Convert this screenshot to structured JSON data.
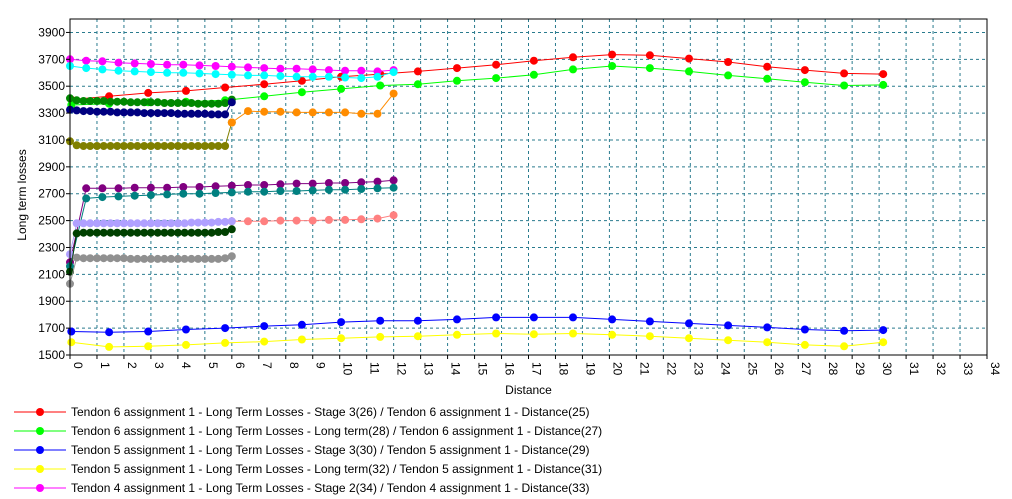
{
  "chart_data": {
    "type": "line",
    "title": "",
    "xlabel": "Distance",
    "ylabel": "Long term losses",
    "xlim": [
      0,
      34
    ],
    "ylim": [
      1500,
      4000
    ],
    "x_ticks": [
      0,
      1,
      2,
      3,
      4,
      5,
      6,
      7,
      8,
      9,
      10,
      11,
      12,
      13,
      14,
      15,
      16,
      17,
      18,
      19,
      20,
      21,
      22,
      23,
      24,
      25,
      26,
      27,
      28,
      29,
      30,
      31,
      32,
      33,
      34
    ],
    "y_ticks": [
      1500,
      1700,
      1900,
      2100,
      2300,
      2500,
      2700,
      2900,
      3100,
      3300,
      3500,
      3700,
      3900
    ],
    "grid": true,
    "legend_position": "bottom",
    "series": [
      {
        "name": "Tendon 6 assignment 1 - Long Term Losses - Stage 3(26) / Tendon 6 assignment 1 - Distance(25)",
        "color": "#ff0000",
        "in_legend": true,
        "x": [
          0.05,
          1.45,
          2.9,
          4.3,
          5.75,
          7.2,
          8.6,
          10.05,
          11.5,
          12.9,
          14.35,
          15.8,
          17.2,
          18.65,
          20.1,
          21.5,
          22.95,
          24.4,
          25.85,
          27.25,
          28.7,
          30.15
        ],
        "y": [
          3400,
          3425,
          3450,
          3465,
          3490,
          3515,
          3540,
          3570,
          3590,
          3610,
          3635,
          3660,
          3690,
          3715,
          3735,
          3730,
          3705,
          3680,
          3645,
          3620,
          3595,
          3590
        ]
      },
      {
        "name": "Tendon 6 assignment 1 - Long Term Losses - Long term(28) / Tendon 6 assignment 1 - Distance(27)",
        "color": "#00ff00",
        "in_legend": true,
        "x": [
          0.05,
          1.45,
          2.9,
          4.3,
          5.75,
          7.2,
          8.6,
          10.05,
          11.5,
          12.9,
          14.35,
          15.8,
          17.2,
          18.65,
          20.1,
          21.5,
          22.95,
          24.4,
          25.85,
          27.25,
          28.7,
          30.15
        ],
        "y": [
          3360,
          3370,
          3380,
          3385,
          3395,
          3425,
          3455,
          3480,
          3505,
          3515,
          3540,
          3560,
          3585,
          3625,
          3650,
          3635,
          3610,
          3580,
          3555,
          3530,
          3505,
          3510
        ]
      },
      {
        "name": "Tendon 5 assignment 1 - Long Term Losses - Stage 3(30) / Tendon 5 assignment 1 - Distance(29)",
        "color": "#0000ff",
        "in_legend": true,
        "x": [
          0.05,
          1.45,
          2.9,
          4.3,
          5.75,
          7.2,
          8.6,
          10.05,
          11.5,
          12.9,
          14.35,
          15.8,
          17.2,
          18.65,
          20.1,
          21.5,
          22.95,
          24.4,
          25.85,
          27.25,
          28.7,
          30.15
        ],
        "y": [
          1675,
          1670,
          1675,
          1690,
          1700,
          1715,
          1725,
          1745,
          1755,
          1755,
          1765,
          1780,
          1780,
          1780,
          1765,
          1750,
          1735,
          1720,
          1705,
          1690,
          1680,
          1685
        ]
      },
      {
        "name": "Tendon 5 assignment 1 - Long Term Losses - Long term(32) / Tendon 5 assignment 1 - Distance(31)",
        "color": "#ffff00",
        "in_legend": true,
        "x": [
          0.05,
          1.45,
          2.9,
          4.3,
          5.75,
          7.2,
          8.6,
          10.05,
          11.5,
          12.9,
          14.35,
          15.8,
          17.2,
          18.65,
          20.1,
          21.5,
          22.95,
          24.4,
          25.85,
          27.25,
          28.7,
          30.15
        ],
        "y": [
          1595,
          1560,
          1565,
          1575,
          1590,
          1600,
          1615,
          1625,
          1635,
          1640,
          1650,
          1660,
          1655,
          1660,
          1650,
          1640,
          1625,
          1610,
          1595,
          1575,
          1565,
          1595
        ]
      },
      {
        "name": "Tendon 4 assignment 1 - Long Term Losses - Stage 2(34) / Tendon 4 assignment 1 - Distance(33)",
        "color": "#ff00ff",
        "in_legend": true,
        "x": [
          0.0,
          0.6,
          1.2,
          1.8,
          2.4,
          3.0,
          3.6,
          4.2,
          4.8,
          5.4,
          6.0,
          6.6,
          7.2,
          7.8,
          8.4,
          9.0,
          9.6,
          10.2,
          10.8,
          11.4,
          12.0
        ],
        "y": [
          3700,
          3690,
          3685,
          3675,
          3670,
          3665,
          3660,
          3660,
          3655,
          3650,
          3645,
          3640,
          3635,
          3630,
          3630,
          3625,
          3620,
          3615,
          3615,
          3610,
          3620
        ]
      },
      {
        "name": "Cyan series",
        "color": "#00ffff",
        "in_legend": false,
        "x": [
          0.0,
          0.6,
          1.2,
          1.8,
          2.4,
          3.0,
          3.6,
          4.2,
          4.8,
          5.4,
          6.0,
          6.6,
          7.2,
          7.8,
          8.4,
          9.0,
          9.6,
          10.2,
          10.8,
          11.4,
          12.0
        ],
        "y": [
          3650,
          3635,
          3625,
          3615,
          3610,
          3605,
          3600,
          3600,
          3595,
          3590,
          3585,
          3580,
          3580,
          3575,
          3570,
          3570,
          3570,
          3565,
          3560,
          3570,
          3605
        ]
      },
      {
        "name": "Dark green series",
        "color": "#008800",
        "in_legend": false,
        "x": [
          0.0,
          0.25,
          0.5,
          0.75,
          1.0,
          1.25,
          1.5,
          1.75,
          2.0,
          2.25,
          2.5,
          2.75,
          3.0,
          3.25,
          3.5,
          3.75,
          4.0,
          4.25,
          4.5,
          4.75,
          5.0,
          5.25,
          5.5,
          5.75,
          6.0
        ],
        "y": [
          3410,
          3395,
          3390,
          3390,
          3390,
          3390,
          3385,
          3385,
          3385,
          3380,
          3380,
          3380,
          3380,
          3380,
          3375,
          3375,
          3375,
          3375,
          3375,
          3370,
          3370,
          3370,
          3370,
          3375,
          3400
        ]
      },
      {
        "name": "Navy series",
        "color": "#000080",
        "in_legend": false,
        "x": [
          0.0,
          0.25,
          0.5,
          0.75,
          1.0,
          1.25,
          1.5,
          1.75,
          2.0,
          2.25,
          2.5,
          2.75,
          3.0,
          3.25,
          3.5,
          3.75,
          4.0,
          4.25,
          4.5,
          4.75,
          5.0,
          5.25,
          5.5,
          5.75,
          6.0
        ],
        "y": [
          3325,
          3320,
          3315,
          3315,
          3310,
          3310,
          3310,
          3305,
          3305,
          3305,
          3305,
          3300,
          3300,
          3300,
          3300,
          3300,
          3295,
          3295,
          3295,
          3295,
          3295,
          3290,
          3290,
          3290,
          3380
        ]
      },
      {
        "name": "Olive series",
        "color": "#808000",
        "in_legend": false,
        "x": [
          0.0,
          0.25,
          0.5,
          0.75,
          1.0,
          1.25,
          1.5,
          1.75,
          2.0,
          2.25,
          2.5,
          2.75,
          3.0,
          3.25,
          3.5,
          3.75,
          4.0,
          4.25,
          4.5,
          4.75,
          5.0,
          5.25,
          5.5,
          5.75,
          6.0
        ],
        "y": [
          3090,
          3060,
          3055,
          3055,
          3055,
          3055,
          3055,
          3055,
          3055,
          3055,
          3055,
          3055,
          3055,
          3055,
          3055,
          3055,
          3055,
          3055,
          3055,
          3055,
          3055,
          3055,
          3055,
          3055,
          3230
        ]
      },
      {
        "name": "Orange series",
        "color": "#ff8c00",
        "in_legend": false,
        "x": [
          6.0,
          6.6,
          7.2,
          7.8,
          8.4,
          9.0,
          9.6,
          10.2,
          10.8,
          11.4,
          12.0
        ],
        "y": [
          3230,
          3315,
          3310,
          3310,
          3305,
          3305,
          3305,
          3305,
          3295,
          3295,
          3445
        ]
      },
      {
        "name": "Purple series",
        "color": "#800080",
        "in_legend": false,
        "x": [
          0.0,
          0.6,
          1.2,
          1.8,
          2.4,
          3.0,
          3.6,
          4.2,
          4.8,
          5.4,
          6.0,
          6.6,
          7.2,
          7.8,
          8.4,
          9.0,
          9.6,
          10.2,
          10.8,
          11.4,
          12.0
        ],
        "y": [
          2190,
          2740,
          2740,
          2740,
          2745,
          2745,
          2745,
          2750,
          2750,
          2755,
          2760,
          2765,
          2765,
          2770,
          2775,
          2775,
          2780,
          2780,
          2785,
          2790,
          2800
        ]
      },
      {
        "name": "Teal series",
        "color": "#008080",
        "in_legend": false,
        "x": [
          0.0,
          0.6,
          1.2,
          1.8,
          2.4,
          3.0,
          3.6,
          4.2,
          4.8,
          5.4,
          6.0,
          6.6,
          7.2,
          7.8,
          8.4,
          9.0,
          9.6,
          10.2,
          10.8,
          11.4,
          12.0
        ],
        "y": [
          2160,
          2665,
          2675,
          2680,
          2685,
          2690,
          2695,
          2700,
          2700,
          2705,
          2710,
          2715,
          2715,
          2720,
          2720,
          2725,
          2730,
          2730,
          2735,
          2740,
          2745
        ]
      },
      {
        "name": "Pink series",
        "color": "#ff8080",
        "in_legend": false,
        "x": [
          6.0,
          6.6,
          7.2,
          7.8,
          8.4,
          9.0,
          9.6,
          10.2,
          10.8,
          11.4,
          12.0
        ],
        "y": [
          2495,
          2495,
          2495,
          2500,
          2500,
          2500,
          2505,
          2505,
          2510,
          2515,
          2540
        ]
      },
      {
        "name": "Lavender series",
        "color": "#b0a0ff",
        "in_legend": false,
        "x": [
          0.0,
          0.25,
          0.5,
          0.75,
          1.0,
          1.25,
          1.5,
          1.75,
          2.0,
          2.25,
          2.5,
          2.75,
          3.0,
          3.25,
          3.5,
          3.75,
          4.0,
          4.25,
          4.5,
          4.75,
          5.0,
          5.25,
          5.5,
          5.75,
          6.0
        ],
        "y": [
          2250,
          2480,
          2480,
          2480,
          2480,
          2480,
          2480,
          2480,
          2480,
          2480,
          2480,
          2480,
          2480,
          2480,
          2480,
          2480,
          2480,
          2480,
          2485,
          2485,
          2485,
          2485,
          2490,
          2490,
          2495
        ]
      },
      {
        "name": "Black-green series",
        "color": "#004000",
        "in_legend": false,
        "x": [
          0.0,
          0.25,
          0.5,
          0.75,
          1.0,
          1.25,
          1.5,
          1.75,
          2.0,
          2.25,
          2.5,
          2.75,
          3.0,
          3.25,
          3.5,
          3.75,
          4.0,
          4.25,
          4.5,
          4.75,
          5.0,
          5.25,
          5.5,
          5.75,
          6.0
        ],
        "y": [
          2120,
          2405,
          2410,
          2410,
          2410,
          2410,
          2410,
          2410,
          2410,
          2410,
          2410,
          2410,
          2410,
          2410,
          2410,
          2410,
          2410,
          2410,
          2410,
          2410,
          2410,
          2410,
          2415,
          2415,
          2435
        ]
      },
      {
        "name": "Gray series",
        "color": "#909090",
        "in_legend": false,
        "x": [
          0.0,
          0.25,
          0.5,
          0.75,
          1.0,
          1.25,
          1.5,
          1.75,
          2.0,
          2.25,
          2.5,
          2.75,
          3.0,
          3.25,
          3.5,
          3.75,
          4.0,
          4.25,
          4.5,
          4.75,
          5.0,
          5.25,
          5.5,
          5.75,
          6.0
        ],
        "y": [
          2030,
          2225,
          2220,
          2220,
          2220,
          2220,
          2220,
          2220,
          2220,
          2215,
          2215,
          2215,
          2215,
          2215,
          2215,
          2215,
          2215,
          2215,
          2215,
          2215,
          2215,
          2215,
          2215,
          2220,
          2235
        ]
      }
    ]
  }
}
